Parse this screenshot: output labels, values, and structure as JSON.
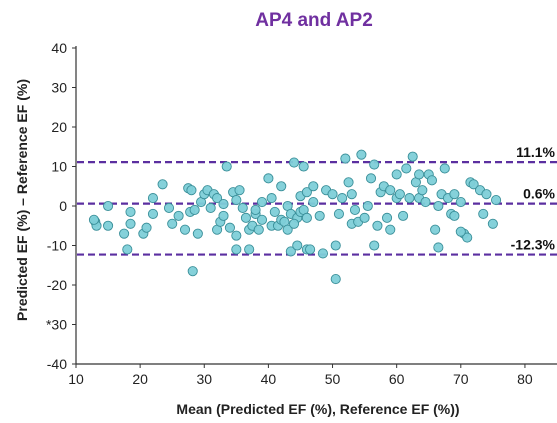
{
  "chart_data": {
    "type": "scatter",
    "title": "AP4 and AP2",
    "xlabel": "Mean (Predicted EF (%), Reference EF (%))",
    "ylabel": "Predicted EF (%) – Reference EF (%)",
    "xlim": [
      10,
      85
    ],
    "ylim": [
      -40,
      40
    ],
    "x_ticks": [
      "10",
      "20",
      "30",
      "40",
      "50",
      "60",
      "70",
      "80"
    ],
    "y_ticks": [
      "40",
      "30",
      "20",
      "10",
      "0",
      "-10",
      "-20",
      "*30",
      "-40"
    ],
    "grid": false,
    "reference_lines": [
      {
        "label": "11.1%",
        "value": 11.1
      },
      {
        "label": "0.6%",
        "value": 0.6
      },
      {
        "label": "-12.3%",
        "value": -12.3
      }
    ],
    "colors": {
      "title": "#7030a0",
      "reference_line": "#5b2fa0",
      "point_fill": "#7ecfd8",
      "point_stroke": "#3a8f99",
      "axis": "#333333"
    },
    "points": [
      [
        13,
        -4
      ],
      [
        13.2,
        -5
      ],
      [
        12.8,
        -3.5
      ],
      [
        15,
        0
      ],
      [
        15,
        -5
      ],
      [
        17.5,
        -7
      ],
      [
        18.5,
        -1.5
      ],
      [
        18.5,
        -4.5
      ],
      [
        18,
        -11
      ],
      [
        20.5,
        -7
      ],
      [
        21,
        -5.5
      ],
      [
        22,
        2
      ],
      [
        22,
        -2
      ],
      [
        23.5,
        5.5
      ],
      [
        24.5,
        -0.5
      ],
      [
        25,
        -4.5
      ],
      [
        26,
        -2.5
      ],
      [
        27,
        -6
      ],
      [
        27.5,
        4.5
      ],
      [
        28,
        4
      ],
      [
        27.8,
        -1.5
      ],
      [
        28.5,
        -1
      ],
      [
        28.2,
        -16.5
      ],
      [
        29,
        -7
      ],
      [
        29.5,
        1
      ],
      [
        30,
        3
      ],
      [
        30.5,
        4
      ],
      [
        31,
        -0.5
      ],
      [
        31.5,
        3
      ],
      [
        32,
        2
      ],
      [
        32,
        -6
      ],
      [
        32.5,
        -4
      ],
      [
        33,
        0.5
      ],
      [
        33,
        -2.5
      ],
      [
        33.5,
        10
      ],
      [
        34,
        -5.5
      ],
      [
        34.5,
        3.5
      ],
      [
        35,
        1.5
      ],
      [
        35.5,
        4
      ],
      [
        35,
        -11
      ],
      [
        36,
        -0.5
      ],
      [
        36.5,
        -3
      ],
      [
        37,
        -6
      ],
      [
        37,
        -11
      ],
      [
        37.5,
        -5
      ],
      [
        38,
        -2
      ],
      [
        38.5,
        -6
      ],
      [
        39,
        -3.5
      ],
      [
        39,
        1
      ],
      [
        40,
        7
      ],
      [
        40.5,
        2
      ],
      [
        40.5,
        -5
      ],
      [
        41,
        -1.5
      ],
      [
        41.5,
        -5
      ],
      [
        42,
        -3.5
      ],
      [
        42,
        5
      ],
      [
        42.5,
        -4
      ],
      [
        43,
        -6
      ],
      [
        43,
        0
      ],
      [
        43.5,
        -11.5
      ],
      [
        43.5,
        -2
      ],
      [
        44,
        11
      ],
      [
        44.5,
        -3
      ],
      [
        44.5,
        -10
      ],
      [
        45,
        -1.5
      ],
      [
        45,
        2.5
      ],
      [
        45.5,
        -1
      ],
      [
        45.5,
        10
      ],
      [
        46,
        3.5
      ],
      [
        46,
        -3
      ],
      [
        46,
        -11
      ],
      [
        46.5,
        -11
      ],
      [
        47,
        1
      ],
      [
        47,
        5
      ],
      [
        48,
        -2.5
      ],
      [
        49,
        4
      ],
      [
        50,
        3
      ],
      [
        50.5,
        -10
      ],
      [
        50.5,
        -18.5
      ],
      [
        51,
        -2
      ],
      [
        51.5,
        2
      ],
      [
        52,
        12
      ],
      [
        52.5,
        6
      ],
      [
        53,
        3
      ],
      [
        53,
        -4.5
      ],
      [
        53.5,
        -1
      ],
      [
        54,
        -4
      ],
      [
        54.5,
        13
      ],
      [
        55,
        -3
      ],
      [
        55.5,
        0
      ],
      [
        56,
        7
      ],
      [
        56.5,
        -10
      ],
      [
        56.5,
        10.5
      ],
      [
        57,
        -5
      ],
      [
        57.5,
        3.5
      ],
      [
        58,
        5
      ],
      [
        58.5,
        -3
      ],
      [
        59,
        -6
      ],
      [
        59,
        4
      ],
      [
        60,
        2
      ],
      [
        60,
        8
      ],
      [
        60.5,
        3
      ],
      [
        61,
        -2.5
      ],
      [
        61.5,
        9.5
      ],
      [
        62,
        2
      ],
      [
        62.5,
        12.5
      ],
      [
        63,
        6
      ],
      [
        63.5,
        8
      ],
      [
        63.5,
        2
      ],
      [
        64,
        4
      ],
      [
        64.5,
        1
      ],
      [
        65,
        8
      ],
      [
        65.5,
        6.5
      ],
      [
        66,
        -6
      ],
      [
        66.5,
        0
      ],
      [
        66.5,
        -10.5
      ],
      [
        67,
        3
      ],
      [
        67.5,
        9.5
      ],
      [
        68,
        2
      ],
      [
        68.5,
        -2
      ],
      [
        69,
        3
      ],
      [
        69,
        -2.5
      ],
      [
        70,
        1
      ],
      [
        70.5,
        -7
      ],
      [
        71,
        -8
      ],
      [
        71.5,
        6
      ],
      [
        72,
        5.5
      ],
      [
        73,
        4
      ],
      [
        73.5,
        -2
      ],
      [
        74,
        3
      ],
      [
        75,
        -4.5
      ],
      [
        75.5,
        1.5
      ],
      [
        70,
        -6.5
      ],
      [
        35,
        -7.5
      ],
      [
        38,
        -1
      ],
      [
        44,
        -4.5
      ],
      [
        48.5,
        -12
      ]
    ]
  }
}
